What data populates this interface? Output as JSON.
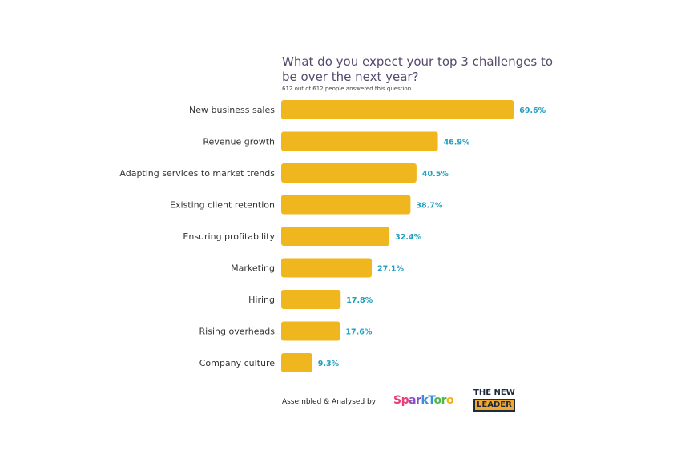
{
  "chart_data": {
    "type": "bar",
    "orientation": "horizontal",
    "title": "What do you expect your top 3 challenges to be over the next year?",
    "subtitle": "612 out of 612 people answered this question",
    "categories": [
      "New business sales",
      "Revenue growth",
      "Adapting services to market trends",
      "Existing client retention",
      "Ensuring profitability",
      "Marketing",
      "Hiring",
      "Rising overheads",
      "Company culture"
    ],
    "values": [
      69.6,
      46.9,
      40.5,
      38.7,
      32.4,
      27.1,
      17.8,
      17.6,
      9.3
    ],
    "value_labels": [
      "69.6%",
      "46.9%",
      "40.5%",
      "38.7%",
      "32.4%",
      "27.1%",
      "17.8%",
      "17.6%",
      "9.3%"
    ],
    "unit": "%",
    "bar_color": "#f0b61e",
    "label_color": "#1fa0c0",
    "grid": false
  },
  "footer": {
    "credit": "Assembled & Analysed by",
    "logo1": "SparkToro",
    "logo2_line1": "THE NEW",
    "logo2_line2": "LEADER"
  }
}
